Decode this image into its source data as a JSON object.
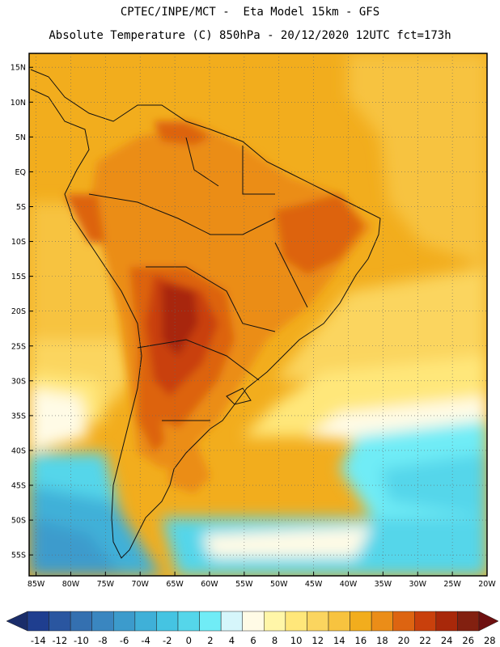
{
  "header": {
    "line1": "CPTEC/INPE/MCT -  Eta Model 15km - GFS",
    "line2": "Absolute Temperature (C) 850hPa - 20/12/2020 12UTC fct=173h"
  },
  "axes": {
    "lat_labels": [
      "15N",
      "10N",
      "5N",
      "EQ",
      "5S",
      "10S",
      "15S",
      "20S",
      "25S",
      "30S",
      "35S",
      "40S",
      "45S",
      "50S",
      "55S"
    ],
    "lat_values": [
      15,
      10,
      5,
      0,
      -5,
      -10,
      -15,
      -20,
      -25,
      -30,
      -35,
      -40,
      -45,
      -50,
      -55
    ],
    "lon_labels": [
      "85W",
      "80W",
      "75W",
      "70W",
      "65W",
      "60W",
      "55W",
      "50W",
      "45W",
      "40W",
      "35W",
      "30W",
      "25W",
      "20W"
    ],
    "lon_values": [
      -85,
      -80,
      -75,
      -70,
      -65,
      -60,
      -55,
      -50,
      -45,
      -40,
      -35,
      -30,
      -25,
      -20
    ],
    "lat_range": [
      -58,
      17
    ],
    "lon_range": [
      -86,
      -20
    ]
  },
  "colorbar": {
    "labels": [
      "-14",
      "-12",
      "-10",
      "-8",
      "-6",
      "-4",
      "-2",
      "0",
      "2",
      "4",
      "6",
      "8",
      "10",
      "12",
      "14",
      "16",
      "18",
      "20",
      "22",
      "24",
      "26",
      "28"
    ],
    "colors": [
      "#1f3e8f",
      "#2a56a0",
      "#3470b0",
      "#3a86c0",
      "#3c9bcc",
      "#3fb0d8",
      "#45c4e2",
      "#55d6ea",
      "#70ecf6",
      "#d6f6fb",
      "#fffbe6",
      "#fff6a8",
      "#ffe77a",
      "#fbd55f",
      "#f7c33f",
      "#f2ad1d",
      "#eb8d18",
      "#dd6411",
      "#c9400c",
      "#a8280a",
      "#822010"
    ],
    "under_color": "#1a2d6a",
    "over_color": "#6e1010"
  }
}
